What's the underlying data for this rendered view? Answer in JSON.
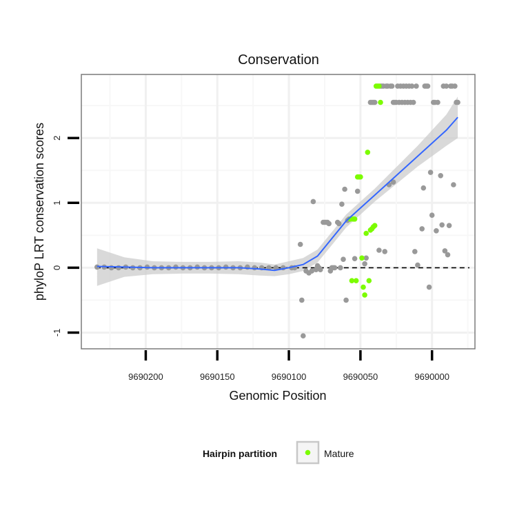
{
  "chart_data": {
    "type": "scatter",
    "title": "Conservation",
    "xlabel": "Genomic Position",
    "ylabel": "phyloP LRT conservation scores",
    "x_reversed": true,
    "xlim": [
      9690245,
      9689970
    ],
    "ylim": [
      -1.25,
      2.98
    ],
    "x_ticks": [
      9690200,
      9690150,
      9690100,
      9690050,
      9690000
    ],
    "x_tick_labels": [
      "9690200",
      "9690150",
      "9690100",
      "9690050",
      "9690000"
    ],
    "y_ticks": [
      -1,
      0,
      1,
      2
    ],
    "y_tick_labels": [
      "-1",
      "0",
      "1",
      "2"
    ],
    "reference_line": {
      "y": 0,
      "style": "dashed"
    },
    "legend": {
      "title": "Hairpin partition",
      "entries": [
        {
          "label": "Mature",
          "color": "#7cfc00"
        }
      ],
      "placement": "bottom"
    },
    "colors": {
      "other": "#999999",
      "mature": "#7cfc00",
      "smooth": "#3366ff",
      "ribbon": "#cccccc"
    },
    "series": [
      {
        "name": "Other",
        "points": [
          [
            9690234,
            0.01
          ],
          [
            9690229,
            0.01
          ],
          [
            9690224,
            0.0
          ],
          [
            9690219,
            0.0
          ],
          [
            9690214,
            0.01
          ],
          [
            9690209,
            0.0
          ],
          [
            9690204,
            0.0
          ],
          [
            9690199,
            0.01
          ],
          [
            9690194,
            0.0
          ],
          [
            9690189,
            0.0
          ],
          [
            9690184,
            0.0
          ],
          [
            9690179,
            0.01
          ],
          [
            9690174,
            0.0
          ],
          [
            9690169,
            0.0
          ],
          [
            9690164,
            0.01
          ],
          [
            9690159,
            0.0
          ],
          [
            9690154,
            0.0
          ],
          [
            9690149,
            0.0
          ],
          [
            9690144,
            0.01
          ],
          [
            9690139,
            0.0
          ],
          [
            9690134,
            0.0
          ],
          [
            9690129,
            0.01
          ],
          [
            9690124,
            0.0
          ],
          [
            9690119,
            0.0
          ],
          [
            9690114,
            0.0
          ],
          [
            9690109,
            0.0
          ],
          [
            9690104,
            0.0
          ],
          [
            9690098,
            0.0
          ],
          [
            9690096,
            0.0
          ],
          [
            9690092,
            0.36
          ],
          [
            9690091,
            -0.5
          ],
          [
            9690090,
            -1.05
          ],
          [
            9690088,
            -0.05
          ],
          [
            9690086,
            -0.08
          ],
          [
            9690084,
            -0.05
          ],
          [
            9690083,
            1.02
          ],
          [
            9690081,
            -0.03
          ],
          [
            9690080,
            0.03
          ],
          [
            9690079,
            0.0
          ],
          [
            9690078,
            -0.03
          ],
          [
            9690076,
            0.7
          ],
          [
            9690075,
            0.7
          ],
          [
            9690074,
            0.7
          ],
          [
            9690073,
            0.7
          ],
          [
            9690072,
            0.68
          ],
          [
            9690071,
            -0.05
          ],
          [
            9690070,
            0.0
          ],
          [
            9690069,
            0.0
          ],
          [
            9690068,
            0.0
          ],
          [
            9690066,
            0.7
          ],
          [
            9690065,
            0.68
          ],
          [
            9690064,
            0.0
          ],
          [
            9690063,
            0.98
          ],
          [
            9690062,
            0.13
          ],
          [
            9690061,
            1.21
          ],
          [
            9690060,
            -0.5
          ],
          [
            9690059,
            0.73
          ],
          [
            9690058,
            0.75
          ],
          [
            9690054,
            0.14
          ],
          [
            9690052,
            1.18
          ],
          [
            9690047,
            0.06
          ],
          [
            9690046,
            0.15
          ],
          [
            9690043,
            2.55
          ],
          [
            9690042,
            2.55
          ],
          [
            9690041,
            2.55
          ],
          [
            9690040,
            2.55
          ],
          [
            9690037,
            0.27
          ],
          [
            9690036,
            2.8
          ],
          [
            9690035,
            2.8
          ],
          [
            9690034,
            2.8
          ],
          [
            9690033,
            0.25
          ],
          [
            9690032,
            2.8
          ],
          [
            9690031,
            2.8
          ],
          [
            9690030,
            1.28
          ],
          [
            9690029,
            2.8
          ],
          [
            9690028,
            2.8
          ],
          [
            9690027,
            1.32
          ],
          [
            9690027,
            2.55
          ],
          [
            9690026,
            2.55
          ],
          [
            9690025,
            2.55
          ],
          [
            9690024,
            2.8
          ],
          [
            9690023,
            2.55
          ],
          [
            9690022,
            2.8
          ],
          [
            9690021,
            2.55
          ],
          [
            9690020,
            2.8
          ],
          [
            9690019,
            2.55
          ],
          [
            9690018,
            2.8
          ],
          [
            9690017,
            2.55
          ],
          [
            9690016,
            2.8
          ],
          [
            9690015,
            2.55
          ],
          [
            9690014,
            2.8
          ],
          [
            9690013,
            2.55
          ],
          [
            9690012,
            0.25
          ],
          [
            9690011,
            2.8
          ],
          [
            9690010,
            0.04
          ],
          [
            9690007,
            0.6
          ],
          [
            9690006,
            1.23
          ],
          [
            9690005,
            2.8
          ],
          [
            9690004,
            2.8
          ],
          [
            9690003,
            2.8
          ],
          [
            9690002,
            -0.3
          ],
          [
            9690001,
            1.47
          ],
          [
            9690000,
            0.81
          ],
          [
            9689999,
            2.55
          ],
          [
            9689998,
            2.55
          ],
          [
            9689997,
            0.57
          ],
          [
            9689996,
            2.55
          ],
          [
            9689994,
            1.42
          ],
          [
            9689993,
            0.66
          ],
          [
            9689992,
            2.8
          ],
          [
            9689991,
            0.26
          ],
          [
            9689990,
            2.8
          ],
          [
            9689989,
            0.2
          ],
          [
            9689988,
            0.65
          ],
          [
            9689987,
            2.8
          ],
          [
            9689986,
            2.8
          ],
          [
            9689985,
            1.28
          ],
          [
            9689984,
            2.8
          ],
          [
            9689983,
            2.55
          ],
          [
            9689982,
            2.55
          ]
        ]
      },
      {
        "name": "Mature",
        "points": [
          [
            9690057,
            0.75
          ],
          [
            9690056,
            -0.2
          ],
          [
            9690055,
            0.75
          ],
          [
            9690054,
            0.75
          ],
          [
            9690053,
            -0.2
          ],
          [
            9690052,
            1.4
          ],
          [
            9690051,
            1.4
          ],
          [
            9690050,
            1.4
          ],
          [
            9690049,
            0.15
          ],
          [
            9690048,
            -0.3
          ],
          [
            9690047,
            -0.42
          ],
          [
            9690046,
            0.53
          ],
          [
            9690045,
            1.78
          ],
          [
            9690044,
            -0.2
          ],
          [
            9690043,
            0.58
          ],
          [
            9690042,
            0.6
          ],
          [
            9690041,
            0.63
          ],
          [
            9690040,
            0.65
          ],
          [
            9690039,
            2.8
          ],
          [
            9690038,
            2.8
          ],
          [
            9690037,
            2.8
          ],
          [
            9690036,
            2.55
          ]
        ]
      }
    ],
    "smooth": {
      "method": "loess",
      "x": [
        9690234,
        9690215,
        9690195,
        9690175,
        9690155,
        9690135,
        9690120,
        9690110,
        9690100,
        9690090,
        9690080,
        9690070,
        9690060,
        9690050,
        9690040,
        9690030,
        9690020,
        9690010,
        9690000,
        9689990,
        9689982
      ],
      "y": [
        0.02,
        0.01,
        0.0,
        0.0,
        0.0,
        0.0,
        -0.02,
        -0.04,
        0.0,
        0.05,
        0.18,
        0.45,
        0.72,
        0.92,
        1.12,
        1.32,
        1.52,
        1.72,
        1.92,
        2.12,
        2.32
      ],
      "ymin": [
        -0.28,
        -0.14,
        -0.1,
        -0.09,
        -0.09,
        -0.1,
        -0.12,
        -0.13,
        -0.1,
        -0.05,
        0.08,
        0.35,
        0.62,
        0.82,
        1.02,
        1.2,
        1.38,
        1.56,
        1.72,
        1.88,
        2.0
      ],
      "ymax": [
        0.3,
        0.16,
        0.1,
        0.09,
        0.09,
        0.1,
        0.08,
        0.05,
        0.1,
        0.15,
        0.28,
        0.55,
        0.82,
        1.02,
        1.22,
        1.44,
        1.66,
        1.88,
        2.12,
        2.36,
        2.64
      ]
    }
  }
}
